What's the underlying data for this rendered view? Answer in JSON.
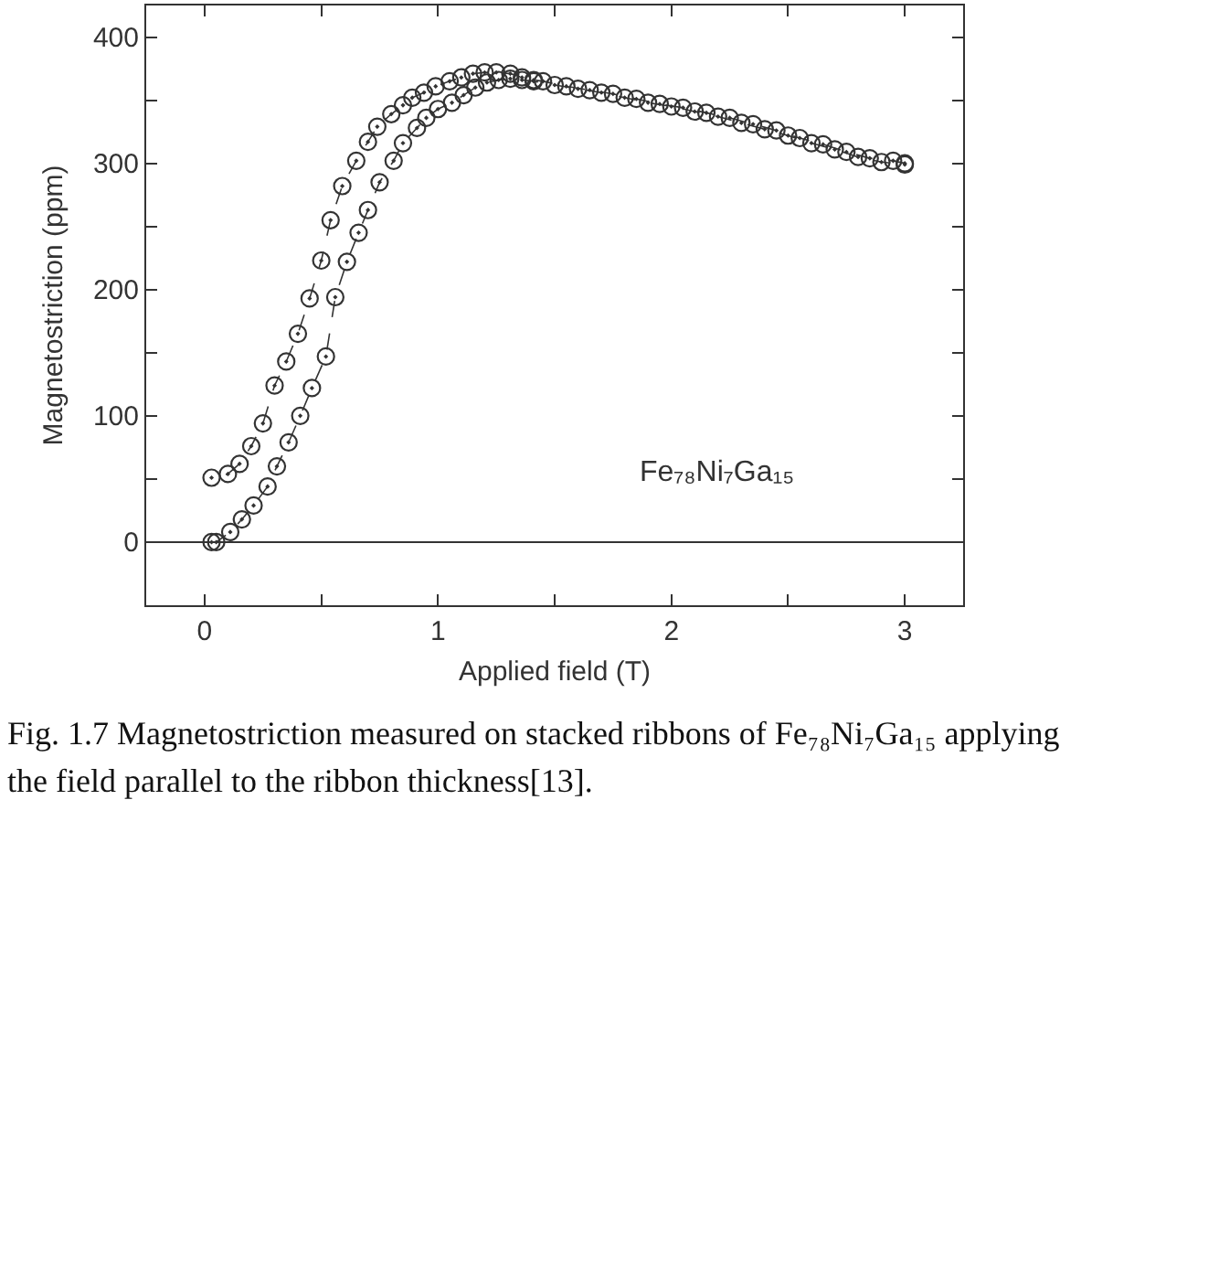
{
  "chart_data": {
    "type": "line",
    "xlabel": "Applied field (T)",
    "ylabel": "Magnetostriction (ppm)",
    "xlim": [
      -0.25,
      3.25
    ],
    "ylim": [
      -50,
      425
    ],
    "xticks": [
      0,
      {
        "value": 0.5,
        "label": null
      },
      1,
      {
        "value": 1.5,
        "label": null
      },
      2,
      {
        "value": 2.5,
        "label": null
      },
      3
    ],
    "yticks": [
      {
        "value": -50,
        "label": null
      },
      0,
      {
        "value": 50,
        "label": null
      },
      100,
      {
        "value": 150,
        "label": null
      },
      200,
      {
        "value": 250,
        "label": null
      },
      300,
      {
        "value": 350,
        "label": null
      },
      400
    ],
    "grid": false,
    "marker": "circle",
    "line_style": "dashed",
    "ref_lines": [
      {
        "axis": "y",
        "value": 0,
        "color": "#333333",
        "line_style": "solid"
      }
    ],
    "annotations": [
      "Fe₇₈Ni₇Ga₁₅",
      "Fig. 1.7 Magnetostriction measured on stacked ribbons of Fe₇₈Ni₇Ga₁₅ applying the field parallel to the ribbon thickness[13]."
    ],
    "series": [
      {
        "color": "#333333",
        "x": [
          0.03,
          0.05,
          0.11,
          0.16,
          0.21,
          0.27,
          0.31,
          0.36,
          0.41,
          0.46,
          0.52,
          0.56,
          0.61,
          0.66,
          0.7,
          0.75,
          0.81,
          0.85,
          0.91,
          0.95,
          1.0,
          1.06,
          1.11,
          1.16,
          1.21,
          1.26,
          1.31,
          1.36,
          1.41,
          1.5,
          1.6,
          1.7,
          1.8,
          1.9,
          2.0,
          2.1,
          2.2,
          2.3,
          2.4,
          2.5,
          2.6,
          2.7,
          2.8,
          2.9,
          3.0
        ],
        "values": [
          0,
          0,
          8,
          18,
          29,
          44,
          60,
          79,
          100,
          122,
          147,
          194,
          222,
          245,
          263,
          285,
          302,
          316,
          328,
          336,
          343,
          348,
          354,
          360,
          364,
          366,
          367,
          366,
          365,
          362,
          359,
          356,
          352,
          348,
          345,
          341,
          337,
          332,
          327,
          322,
          316,
          311,
          305,
          301,
          299
        ]
      },
      {
        "color": "#333333",
        "x": [
          3.0,
          2.95,
          2.85,
          2.75,
          2.65,
          2.55,
          2.45,
          2.35,
          2.25,
          2.15,
          2.05,
          1.95,
          1.85,
          1.75,
          1.65,
          1.55,
          1.45,
          1.41,
          1.36,
          1.31,
          1.25,
          1.2,
          1.15,
          1.1,
          1.05,
          0.99,
          0.94,
          0.89,
          0.85,
          0.8,
          0.74,
          0.7,
          0.65,
          0.59,
          0.54,
          0.5,
          0.45,
          0.4,
          0.35,
          0.3,
          0.25,
          0.2,
          0.15,
          0.1,
          0.03
        ],
        "values": [
          300,
          302,
          304,
          309,
          315,
          320,
          326,
          331,
          336,
          340,
          344,
          347,
          351,
          355,
          358,
          361,
          365,
          366,
          368,
          371,
          372,
          372,
          371,
          368,
          365,
          361,
          356,
          352,
          346,
          339,
          329,
          317,
          302,
          282,
          255,
          223,
          193,
          165,
          143,
          124,
          94,
          76,
          62,
          54,
          51
        ]
      }
    ]
  }
}
